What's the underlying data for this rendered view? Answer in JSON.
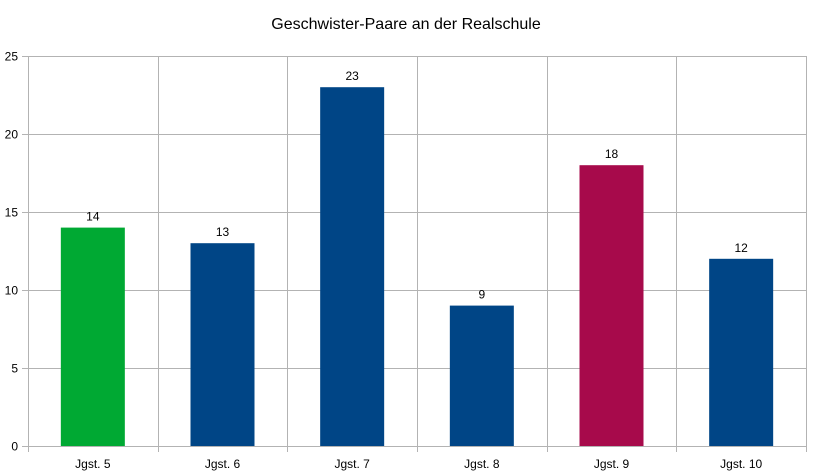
{
  "chart_data": {
    "type": "bar",
    "title": "Geschwister-Paare an der Realschule",
    "xlabel": "",
    "ylabel": "",
    "categories": [
      "Jgst. 5",
      "Jgst. 6",
      "Jgst. 7",
      "Jgst. 8",
      "Jgst. 9",
      "Jgst. 10"
    ],
    "values": [
      14,
      13,
      23,
      9,
      18,
      12
    ],
    "bar_colors": [
      "#00a933",
      "#004586",
      "#004586",
      "#004586",
      "#a70a4b",
      "#004586"
    ],
    "ylim": [
      0,
      25
    ],
    "yticks": [
      0,
      5,
      10,
      15,
      20,
      25
    ],
    "grid": true,
    "legend": "none",
    "data_labels": true
  }
}
